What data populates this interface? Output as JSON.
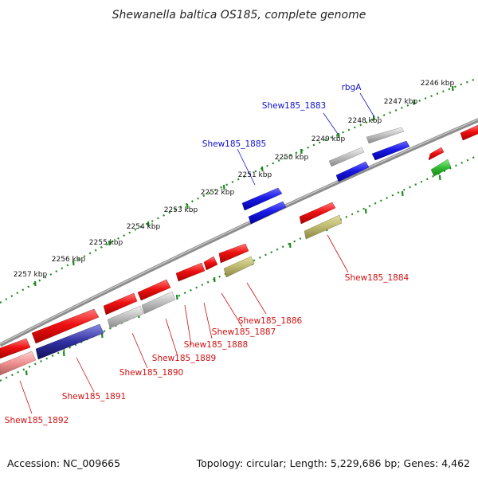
{
  "title": "Shewanella baltica OS185, complete genome",
  "footer": {
    "accession": "Accession: NC_009665",
    "summary": "Topology: circular; Length: 5,229,686 bp; Genes: 4,462"
  },
  "colors": {
    "backbone": "#8c8c8c",
    "ruler": "#1e8a1e",
    "label_forward": "#1010cc",
    "label_reverse": "#d01010",
    "cds": "#ee1111",
    "pseudo": "#b8b8b8",
    "rna": "#1f1fe0",
    "hypothetical": "#bcb76e",
    "misc": "#33bb33",
    "operon": "#3030a0"
  },
  "ticks": [
    {
      "label": "2246 kbp"
    },
    {
      "label": "2247 kbp"
    },
    {
      "label": "2248 kbp"
    },
    {
      "label": "2249 kbp"
    },
    {
      "label": "2250 kbp"
    },
    {
      "label": "2251 kbp"
    },
    {
      "label": "2252 kbp"
    },
    {
      "label": "2253 kbp"
    },
    {
      "label": "2254 kbp"
    },
    {
      "label": "2255 kbp"
    },
    {
      "label": "2256 kbp"
    },
    {
      "label": "2257 kbp"
    }
  ],
  "gene_labels": [
    {
      "name": "rbgA",
      "strand": "forward"
    },
    {
      "name": "Shew185_1883",
      "strand": "forward"
    },
    {
      "name": "Shew185_1885",
      "strand": "forward"
    },
    {
      "name": "Shew185_1884",
      "strand": "reverse"
    },
    {
      "name": "Shew185_1886",
      "strand": "reverse"
    },
    {
      "name": "Shew185_1887",
      "strand": "reverse"
    },
    {
      "name": "Shew185_1888",
      "strand": "reverse"
    },
    {
      "name": "Shew185_1889",
      "strand": "reverse"
    },
    {
      "name": "Shew185_1890",
      "strand": "reverse"
    },
    {
      "name": "Shew185_1891",
      "strand": "reverse"
    },
    {
      "name": "Shew185_1892",
      "strand": "reverse"
    }
  ]
}
